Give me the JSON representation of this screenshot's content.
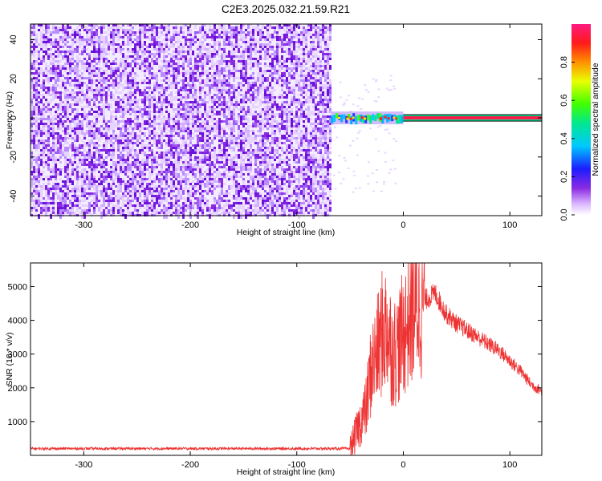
{
  "title": "C2E3.2025.032.21.59.R21",
  "chart_data": [
    {
      "type": "heatmap",
      "xlabel": "Height of straight line (km)",
      "ylabel": "Frequency (Hz)",
      "xlim": [
        -350,
        130
      ],
      "ylim": [
        -50,
        48
      ],
      "xticks": [
        -300,
        -200,
        -100,
        0,
        100
      ],
      "yticks": [
        -40,
        -20,
        0,
        20,
        40
      ],
      "noise_region_x": [
        -350,
        -68
      ],
      "signal_start_x": -68,
      "carrier_frequency": 0,
      "colorbar": {
        "label": "Normalized spectral amplitude",
        "range": [
          0,
          1
        ],
        "ticks": [
          0.0,
          0.2,
          0.4,
          0.6,
          0.8
        ]
      }
    },
    {
      "type": "line",
      "xlabel": "Height of straight line (km)",
      "ylabel": "SNR (10 * v/v)",
      "xlim": [
        -350,
        130
      ],
      "ylim": [
        0,
        5700
      ],
      "xticks": [
        -300,
        -200,
        -100,
        0,
        100
      ],
      "yticks": [
        1000,
        2000,
        3000,
        4000,
        5000
      ],
      "color": "#ee3333",
      "series": [
        {
          "x": [
            -350,
            -300,
            -250,
            -200,
            -150,
            -100,
            -60,
            -50,
            -45,
            -40,
            -35,
            -30,
            -25,
            -20,
            -15,
            -10,
            -5,
            0,
            10,
            20,
            30,
            40,
            50,
            60,
            70,
            80,
            90,
            100,
            110,
            120,
            130
          ],
          "values": [
            200,
            200,
            200,
            200,
            200,
            200,
            200,
            200,
            600,
            1000,
            1400,
            2600,
            3000,
            3600,
            3800,
            3000,
            3200,
            3600,
            4400,
            4600,
            4800,
            4200,
            3900,
            3700,
            3500,
            3300,
            3100,
            2800,
            2500,
            2100,
            1900
          ]
        }
      ]
    }
  ]
}
